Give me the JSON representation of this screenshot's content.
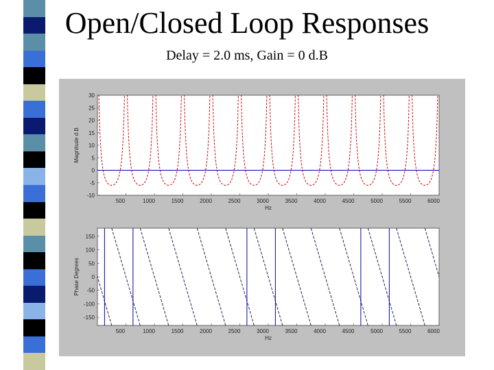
{
  "slide": {
    "title": "Open/Closed Loop Responses",
    "subtitle": "Delay = 2.0 ms, Gain =  0 d.B"
  },
  "colors": {
    "strip": [
      "#5b8fa8",
      "#0a1a6e",
      "#5b8fa8",
      "#3a6fd8",
      "#000000",
      "#c9c9a0",
      "#3a6fd8",
      "#0a1a6e",
      "#5b8fa8",
      "#000000",
      "#8ab4e8",
      "#3a6fd8",
      "#000000",
      "#c9c9a0",
      "#5b8fa8",
      "#000000",
      "#3a6fd8",
      "#0a1a6e",
      "#8ab4e8",
      "#000000",
      "#3a6fd8",
      "#c9c9a0"
    ],
    "figure_bg": "#c0c0c0",
    "plot_bg": "#ffffff",
    "red": "#cc0000",
    "blue": "#0000aa"
  },
  "chart_data": [
    {
      "type": "line",
      "title": "",
      "xlabel": "Hz",
      "ylabel": "Magnitude d.B",
      "xlim": [
        0,
        6000
      ],
      "ylim": [
        -10,
        30
      ],
      "xticks": [
        500,
        1000,
        1500,
        2000,
        2500,
        3000,
        3500,
        4000,
        4500,
        5000,
        5500,
        6000
      ],
      "xtick_labels": [
        "500",
        "1000",
        "1500",
        "2000",
        "2500",
        "3000",
        "3500",
        "4000",
        "4500",
        "5000",
        "5500",
        "6000"
      ],
      "yticks": [
        30,
        25,
        20,
        15,
        10,
        5,
        0,
        -5,
        -10
      ],
      "ytick_labels": [
        "30",
        "25",
        "20",
        "15",
        "10",
        "5",
        "0",
        "-5",
        "-10"
      ],
      "series": [
        {
          "color": "#cc0000",
          "style": "dashed",
          "description_values": {
            "peak_period_hz": 500,
            "peak_hz": [
              0,
              500,
              1000,
              1500,
              2000,
              2500,
              3000,
              3500,
              4000,
              4500,
              5000,
              5500,
              6000
            ],
            "min_db": -6
          }
        },
        {
          "color": "#0000aa",
          "style": "solid",
          "constant_db": 0
        }
      ]
    },
    {
      "type": "line",
      "title": "",
      "xlabel": "Hz",
      "ylabel": "Phase Degrees",
      "xlim": [
        0,
        6000
      ],
      "ylim": [
        -180,
        180
      ],
      "xticks": [
        500,
        1000,
        1500,
        2000,
        2500,
        3000,
        3500,
        4000,
        4500,
        5000,
        5500,
        6000
      ],
      "xtick_labels": [
        "500",
        "1000",
        "1500",
        "2000",
        "2500",
        "3000",
        "3500",
        "4000",
        "4500",
        "5000",
        "5500",
        "6000"
      ],
      "yticks": [
        150,
        100,
        50,
        0,
        -50,
        -100,
        -150
      ],
      "ytick_labels": [
        "150",
        "100",
        "50",
        "0",
        "-50",
        "-100",
        "-150"
      ],
      "series": [
        {
          "color": "#0a0a4a",
          "style": "dashed",
          "wrap_period_hz": 500
        },
        {
          "color": "#0000aa",
          "style": "solid",
          "vertical_jumps_hz": [
            125,
            625,
            2625,
            3125,
            4625,
            5125
          ]
        }
      ]
    }
  ]
}
